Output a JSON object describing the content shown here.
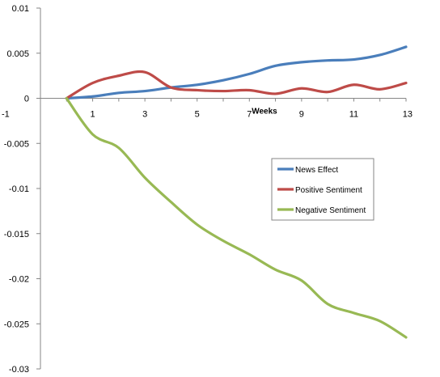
{
  "chart_data": {
    "type": "line",
    "xlabel": "Weeks",
    "ylabel": "",
    "title": "",
    "xlim": [
      -1,
      13
    ],
    "ylim": [
      -0.03,
      0.01
    ],
    "x_ticks": [
      -1,
      1,
      3,
      5,
      7,
      9,
      11,
      13
    ],
    "y_ticks": [
      0.01,
      0.005,
      0,
      -0.005,
      -0.01,
      -0.015,
      -0.02,
      -0.025,
      -0.03
    ],
    "y_tick_labels": [
      "0.01",
      "0.005",
      "0",
      "-0.005",
      "-0.01",
      "-0.015",
      "-0.02",
      "-0.025",
      "-0.03"
    ],
    "grid": false,
    "legend_position": "right",
    "x": [
      0,
      1,
      2,
      3,
      4,
      5,
      6,
      7,
      8,
      9,
      10,
      11,
      12,
      13
    ],
    "series": [
      {
        "name": "News Effect",
        "color": "#4A7EBB",
        "values": [
          0,
          0.0002,
          0.0006,
          0.0008,
          0.0012,
          0.0015,
          0.002,
          0.0027,
          0.0036,
          0.004,
          0.0042,
          0.0043,
          0.0048,
          0.0057
        ]
      },
      {
        "name": "Positive Sentiment",
        "color": "#BE4B48",
        "values": [
          0,
          0.0017,
          0.0025,
          0.0029,
          0.0012,
          0.0009,
          0.0008,
          0.0009,
          0.0005,
          0.0011,
          0.0007,
          0.0015,
          0.001,
          0.0017
        ]
      },
      {
        "name": "Negative Sentiment",
        "color": "#98B954",
        "values": [
          0,
          -0.004,
          -0.0055,
          -0.0088,
          -0.0115,
          -0.014,
          -0.0158,
          -0.0173,
          -0.019,
          -0.0202,
          -0.0228,
          -0.0238,
          -0.0247,
          -0.0265
        ]
      }
    ]
  }
}
